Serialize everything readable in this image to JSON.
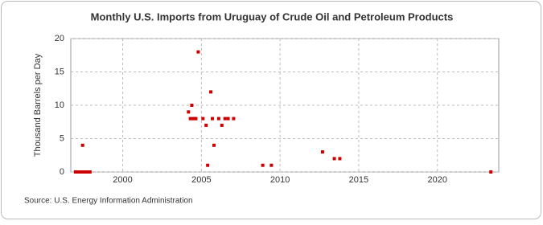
{
  "chart_data": {
    "type": "scatter",
    "title": "Monthly U.S. Imports from Uruguay of Crude Oil and Petroleum Products",
    "y_label": "Thousand Barrels per Day",
    "source": "Source: U.S. Energy Information Administration",
    "color": "#cc0000",
    "x": [
      1997.0,
      1997.08,
      1997.17,
      1997.25,
      1997.33,
      1997.42,
      1997.5,
      1997.58,
      1997.67,
      1997.75,
      1997.83,
      1997.92,
      1997.45,
      2004.18,
      2004.39,
      2004.3,
      2004.45,
      2004.55,
      2004.65,
      2004.8,
      2005.1,
      2005.3,
      2005.4,
      2005.6,
      2005.7,
      2005.8,
      2006.1,
      2006.3,
      2006.5,
      2006.7,
      2007.05,
      2008.9,
      2009.45,
      2012.7,
      2013.45,
      2013.8,
      2023.4
    ],
    "values": [
      0,
      0,
      0,
      0,
      0,
      0,
      0,
      0,
      0,
      0,
      0,
      0,
      4,
      9,
      10,
      8,
      8,
      8,
      8,
      18,
      8,
      7,
      1,
      12,
      8,
      4,
      8,
      7,
      8,
      8,
      8,
      1,
      1,
      3,
      2,
      2,
      0
    ],
    "xlim": [
      1996.7,
      2023.9
    ],
    "ylim": [
      0,
      20
    ],
    "xticks": [
      2000,
      2005,
      2010,
      2015,
      2020
    ],
    "yticks": [
      0,
      5,
      10,
      15,
      20
    ],
    "grid": true
  }
}
